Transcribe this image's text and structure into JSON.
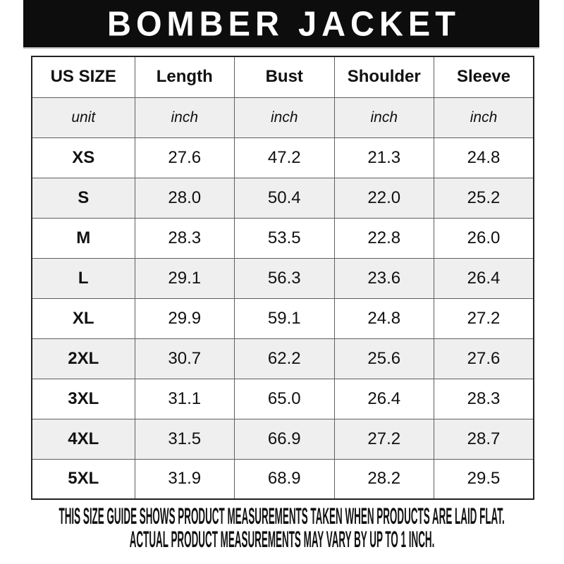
{
  "header": {
    "title": "BOMBER JACKET"
  },
  "table": {
    "columns": [
      "US SIZE",
      "Length",
      "Bust",
      "Shoulder",
      "Sleeve"
    ],
    "unit_row": [
      "unit",
      "inch",
      "inch",
      "inch",
      "inch"
    ],
    "rows": [
      {
        "size": "XS",
        "values": [
          "27.6",
          "47.2",
          "21.3",
          "24.8"
        ]
      },
      {
        "size": "S",
        "values": [
          "28.0",
          "50.4",
          "22.0",
          "25.2"
        ]
      },
      {
        "size": "M",
        "values": [
          "28.3",
          "53.5",
          "22.8",
          "26.0"
        ]
      },
      {
        "size": "L",
        "values": [
          "29.1",
          "56.3",
          "23.6",
          "26.4"
        ]
      },
      {
        "size": "XL",
        "values": [
          "29.9",
          "59.1",
          "24.8",
          "27.2"
        ]
      },
      {
        "size": "2XL",
        "values": [
          "30.7",
          "62.2",
          "25.6",
          "27.6"
        ]
      },
      {
        "size": "3XL",
        "values": [
          "31.1",
          "65.0",
          "26.4",
          "28.3"
        ]
      },
      {
        "size": "4XL",
        "values": [
          "31.5",
          "66.9",
          "27.2",
          "28.7"
        ]
      },
      {
        "size": "5XL",
        "values": [
          "31.9",
          "68.9",
          "28.2",
          "29.5"
        ]
      }
    ]
  },
  "footer": {
    "line1": "THIS SIZE GUIDE SHOWS PRODUCT MEASUREMENTS TAKEN WHEN PRODUCTS ARE LAID FLAT.",
    "line2": "ACTUAL PRODUCT MEASUREMENTS MAY VARY BY UP TO 1 INCH."
  },
  "colors": {
    "banner_bg": "#0d0d0d",
    "banner_text": "#ffffff",
    "row_alt_bg": "#efefef",
    "row_bg": "#ffffff",
    "border": "#5f5f5f",
    "text": "#111111"
  }
}
